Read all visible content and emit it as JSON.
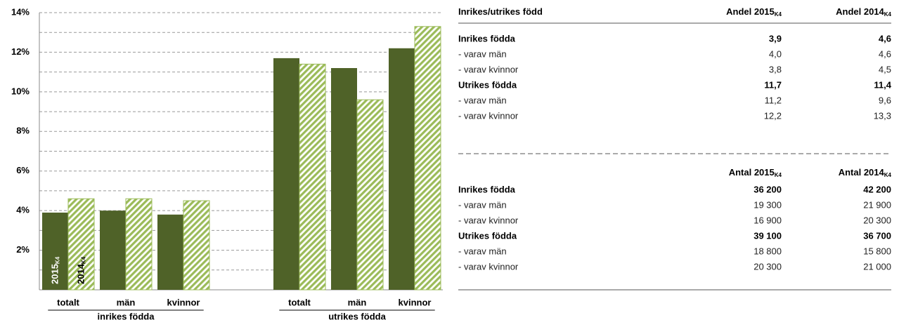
{
  "chart_data": {
    "type": "bar",
    "categories": [
      "totalt",
      "män",
      "kvinnor",
      "totalt",
      "män",
      "kvinnor"
    ],
    "groups": [
      "inrikes födda",
      "utrikes födda"
    ],
    "series": [
      {
        "name": "2015",
        "name_sub": "K4",
        "color": "#4f6228",
        "pattern": false,
        "values": [
          3.9,
          4.0,
          3.8,
          11.7,
          11.2,
          12.2
        ]
      },
      {
        "name": "2014",
        "name_sub": "K4",
        "color": "#9bbb59",
        "pattern": true,
        "values": [
          4.6,
          4.6,
          4.5,
          11.4,
          9.6,
          13.3
        ]
      }
    ],
    "ylim": [
      0,
      14
    ],
    "yticks": [
      {
        "value": 2,
        "label": "2%"
      },
      {
        "value": 4,
        "label": "4%"
      },
      {
        "value": 6,
        "label": "6%"
      },
      {
        "value": 8,
        "label": "8%"
      },
      {
        "value": 10,
        "label": "10%"
      },
      {
        "value": 12,
        "label": "12%"
      },
      {
        "value": 14,
        "label": "14%"
      }
    ],
    "minor_yticks": [
      1,
      3,
      5,
      7,
      9,
      11,
      13
    ],
    "grid": true
  },
  "table": {
    "sections": [
      {
        "header": [
          {
            "text": "Inrikes/utrikes född"
          },
          {
            "text": "Andel 2015",
            "sub": "K4"
          },
          {
            "text": "Andel 2014",
            "sub": "K4"
          }
        ],
        "rows": [
          {
            "cells": [
              "Inrikes födda",
              "3,9",
              "4,6"
            ],
            "bold": true
          },
          {
            "cells": [
              "- varav män",
              "4,0",
              "4,6"
            ],
            "bold": false
          },
          {
            "cells": [
              "- varav kvinnor",
              "3,8",
              "4,5"
            ],
            "bold": false
          },
          {
            "cells": [
              "Utrikes födda",
              "11,7",
              "11,4"
            ],
            "bold": true
          },
          {
            "cells": [
              "- varav män",
              "11,2",
              "9,6"
            ],
            "bold": false
          },
          {
            "cells": [
              "- varav kvinnor",
              "12,2",
              "13,3"
            ],
            "bold": false
          }
        ]
      },
      {
        "header": [
          {
            "text": "Antal 2015",
            "sub": "K4"
          },
          {
            "text": "Antal 2014",
            "sub": "K4"
          }
        ],
        "rows": [
          {
            "cells": [
              "Inrikes födda",
              "36 200",
              "42 200"
            ],
            "bold": true
          },
          {
            "cells": [
              "- varav män",
              "19 300",
              "21 900"
            ],
            "bold": false
          },
          {
            "cells": [
              "- varav kvinnor",
              "16 900",
              "20 300"
            ],
            "bold": false
          },
          {
            "cells": [
              "Utrikes födda",
              "39 100",
              "36 700"
            ],
            "bold": true
          },
          {
            "cells": [
              "- varav män",
              "18 800",
              "15 800"
            ],
            "bold": false
          },
          {
            "cells": [
              "- varav kvinnor",
              "20 300",
              "21 000"
            ],
            "bold": false
          }
        ]
      }
    ]
  }
}
